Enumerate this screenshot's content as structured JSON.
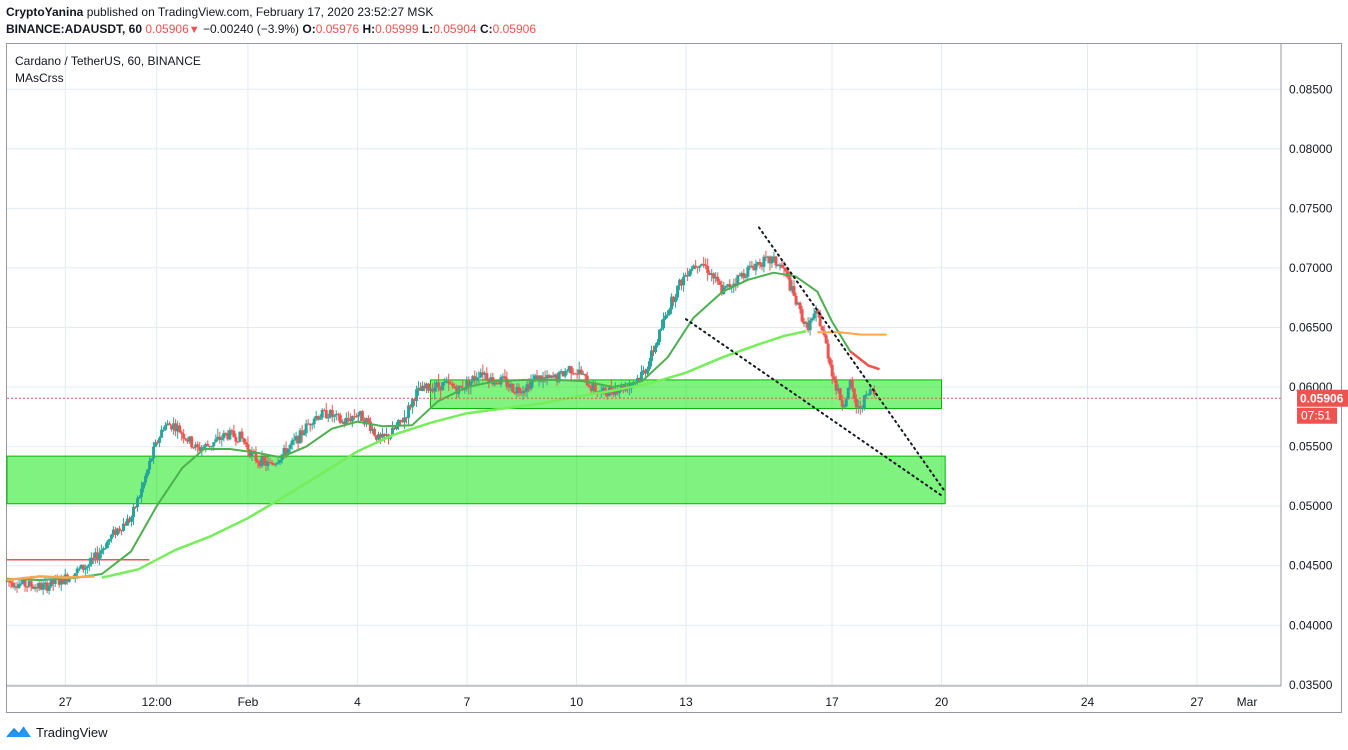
{
  "header": {
    "author": "CryptoYanina",
    "published_text": "published on TradingView.com, February 17, 2020 23:52:27 MSK",
    "symbol": "BINANCE:ADAUSDT, 60",
    "last": "0.05906",
    "change": "−0.00240 (−3.9%)",
    "open_label": "O:",
    "open": "0.05976",
    "high_label": "H:",
    "high": "0.05999",
    "low_label": "L:",
    "low": "0.05904",
    "close_label": "C:",
    "close": "0.05906"
  },
  "legend": {
    "title": "Cardano / TetherUS, 60, BINANCE",
    "indicator": "MAsCrss"
  },
  "footer": {
    "brand": "TradingView"
  },
  "colors": {
    "grid": "#e1ecf2",
    "up": "#26a69a",
    "down": "#ef5350",
    "zone_fill": "#00e600",
    "zone_stroke": "#00b800",
    "ma_fast": "#4caf50",
    "ma_slow": "#76ee5a",
    "ma_orange": "#ffa64d",
    "price_line": "#ef5350",
    "trend": "#131722"
  },
  "chart_data": {
    "type": "candlestick",
    "ylim": [
      0.0349,
      0.0888
    ],
    "y_ticks": [
      "0.03500",
      "0.04000",
      "0.04500",
      "0.05000",
      "0.05500",
      "0.06000",
      "0.06500",
      "0.07000",
      "0.07500",
      "0.08000",
      "0.08500"
    ],
    "x_range": [
      25.4,
      60.3
    ],
    "x_ticks": [
      {
        "x": 27,
        "label": "27"
      },
      {
        "x": 29.5,
        "label": "12:00"
      },
      {
        "x": 32,
        "label": "Feb"
      },
      {
        "x": 35,
        "label": "4"
      },
      {
        "x": 38,
        "label": "7"
      },
      {
        "x": 41,
        "label": "10"
      },
      {
        "x": 44,
        "label": "13"
      },
      {
        "x": 48,
        "label": "17"
      },
      {
        "x": 51,
        "label": "20"
      },
      {
        "x": 55,
        "label": "24"
      },
      {
        "x": 58,
        "label": "27"
      },
      {
        "x": 61,
        "label": "Mar"
      }
    ],
    "last_price": {
      "value": 0.05906,
      "label": "0.05906",
      "countdown": "07:51"
    },
    "price_path": [
      [
        25.4,
        0.0437
      ],
      [
        25.9,
        0.0434
      ],
      [
        26.4,
        0.0432
      ],
      [
        26.9,
        0.0438
      ],
      [
        27.3,
        0.0445
      ],
      [
        27.7,
        0.0452
      ],
      [
        28.1,
        0.0468
      ],
      [
        28.4,
        0.048
      ],
      [
        28.8,
        0.049
      ],
      [
        29.1,
        0.0515
      ],
      [
        29.4,
        0.0545
      ],
      [
        29.7,
        0.0568
      ],
      [
        30.0,
        0.0568
      ],
      [
        30.3,
        0.0558
      ],
      [
        30.6,
        0.0548
      ],
      [
        31.0,
        0.0552
      ],
      [
        31.4,
        0.056
      ],
      [
        31.8,
        0.0558
      ],
      [
        32.2,
        0.054
      ],
      [
        32.6,
        0.0534
      ],
      [
        33.0,
        0.0545
      ],
      [
        33.4,
        0.0558
      ],
      [
        33.8,
        0.0575
      ],
      [
        34.2,
        0.0578
      ],
      [
        34.6,
        0.057
      ],
      [
        35.0,
        0.0578
      ],
      [
        35.3,
        0.057
      ],
      [
        35.6,
        0.0555
      ],
      [
        35.9,
        0.056
      ],
      [
        36.3,
        0.0575
      ],
      [
        36.6,
        0.0595
      ],
      [
        37.0,
        0.06
      ],
      [
        37.4,
        0.0602
      ],
      [
        37.8,
        0.0598
      ],
      [
        38.1,
        0.0605
      ],
      [
        38.4,
        0.0614
      ],
      [
        38.7,
        0.0605
      ],
      [
        39.0,
        0.0605
      ],
      [
        39.3,
        0.0598
      ],
      [
        39.6,
        0.06
      ],
      [
        39.9,
        0.0608
      ],
      [
        40.2,
        0.0606
      ],
      [
        40.5,
        0.0608
      ],
      [
        40.8,
        0.0616
      ],
      [
        41.1,
        0.0612
      ],
      [
        41.4,
        0.06
      ],
      [
        41.7,
        0.0595
      ],
      [
        42.0,
        0.0598
      ],
      [
        42.3,
        0.06
      ],
      [
        42.6,
        0.0605
      ],
      [
        42.9,
        0.0615
      ],
      [
        43.2,
        0.0638
      ],
      [
        43.5,
        0.0665
      ],
      [
        43.8,
        0.0685
      ],
      [
        44.1,
        0.07
      ],
      [
        44.4,
        0.0706
      ],
      [
        44.7,
        0.0695
      ],
      [
        45.0,
        0.068
      ],
      [
        45.3,
        0.0688
      ],
      [
        45.6,
        0.0696
      ],
      [
        46.0,
        0.0705
      ],
      [
        46.4,
        0.0706
      ],
      [
        46.7,
        0.0698
      ],
      [
        47.0,
        0.0672
      ],
      [
        47.3,
        0.065
      ],
      [
        47.6,
        0.0662
      ],
      [
        47.8,
        0.064
      ],
      [
        48.1,
        0.06
      ],
      [
        48.3,
        0.0585
      ],
      [
        48.5,
        0.0602
      ],
      [
        48.7,
        0.058
      ],
      [
        48.9,
        0.059
      ],
      [
        49.1,
        0.0598
      ],
      [
        49.2,
        0.0591
      ]
    ],
    "series": [
      {
        "points": [
          [
            25.4,
            0.0439
          ],
          [
            26.3,
            0.0438
          ],
          [
            27.3,
            0.044
          ],
          [
            28.0,
            0.0443
          ],
          [
            28.8,
            0.0462
          ],
          [
            29.5,
            0.05
          ],
          [
            30.2,
            0.0532
          ],
          [
            30.8,
            0.0548
          ],
          [
            31.5,
            0.0548
          ],
          [
            32.2,
            0.0545
          ],
          [
            32.9,
            0.0541
          ],
          [
            33.6,
            0.055
          ],
          [
            34.3,
            0.0565
          ],
          [
            35.0,
            0.0571
          ],
          [
            35.7,
            0.0567
          ],
          [
            36.5,
            0.0568
          ],
          [
            37.2,
            0.0588
          ],
          [
            38.0,
            0.06
          ],
          [
            38.8,
            0.0605
          ],
          [
            39.6,
            0.0606
          ],
          [
            40.4,
            0.0606
          ],
          [
            41.2,
            0.0605
          ],
          [
            42.0,
            0.06
          ],
          [
            42.8,
            0.0605
          ],
          [
            43.5,
            0.0625
          ],
          [
            44.2,
            0.0658
          ],
          [
            45.0,
            0.068
          ],
          [
            45.7,
            0.069
          ],
          [
            46.4,
            0.0696
          ],
          [
            47.0,
            0.0693
          ],
          [
            47.6,
            0.068
          ],
          [
            48.0,
            0.0655
          ],
          [
            48.5,
            0.063
          ],
          [
            49.0,
            0.0618
          ],
          [
            49.3,
            0.0615
          ]
        ]
      },
      {
        "points": [
          [
            28.0,
            0.044
          ],
          [
            29.0,
            0.0447
          ],
          [
            30.0,
            0.0463
          ],
          [
            31.0,
            0.0475
          ],
          [
            32.0,
            0.049
          ],
          [
            33.0,
            0.0508
          ],
          [
            34.0,
            0.0527
          ],
          [
            35.0,
            0.0546
          ],
          [
            36.0,
            0.056
          ],
          [
            37.0,
            0.057
          ],
          [
            38.0,
            0.0578
          ],
          [
            39.0,
            0.0582
          ],
          [
            40.0,
            0.0586
          ],
          [
            41.0,
            0.0592
          ],
          [
            42.0,
            0.0597
          ],
          [
            43.0,
            0.0603
          ],
          [
            44.0,
            0.0612
          ],
          [
            45.0,
            0.0625
          ],
          [
            46.0,
            0.0636
          ],
          [
            46.7,
            0.0643
          ],
          [
            47.3,
            0.0647
          ]
        ]
      },
      {
        "points": [
          [
            25.4,
            0.0438
          ],
          [
            26.3,
            0.0441
          ],
          [
            27.0,
            0.044
          ],
          [
            27.8,
            0.0441
          ]
        ]
      },
      {
        "points": [
          [
            47.6,
            0.0646
          ],
          [
            48.2,
            0.0646
          ],
          [
            48.8,
            0.0644
          ],
          [
            49.5,
            0.0644
          ]
        ]
      }
    ],
    "levels": [
      {
        "x0": 25.4,
        "x1": 29.3,
        "y": 0.0455
      }
    ],
    "zones": [
      {
        "x0": 37.0,
        "x1": 51.0,
        "y0": 0.0582,
        "y1": 0.0606
      },
      {
        "x0": 25.4,
        "x1": 51.1,
        "y0": 0.0502,
        "y1": 0.0542
      }
    ],
    "trendlines": [
      {
        "x0": 46.0,
        "y0": 0.0734,
        "x1": 51.1,
        "y1": 0.0512
      },
      {
        "x0": 44.0,
        "y0": 0.0657,
        "x1": 51.0,
        "y1": 0.0509
      }
    ]
  }
}
